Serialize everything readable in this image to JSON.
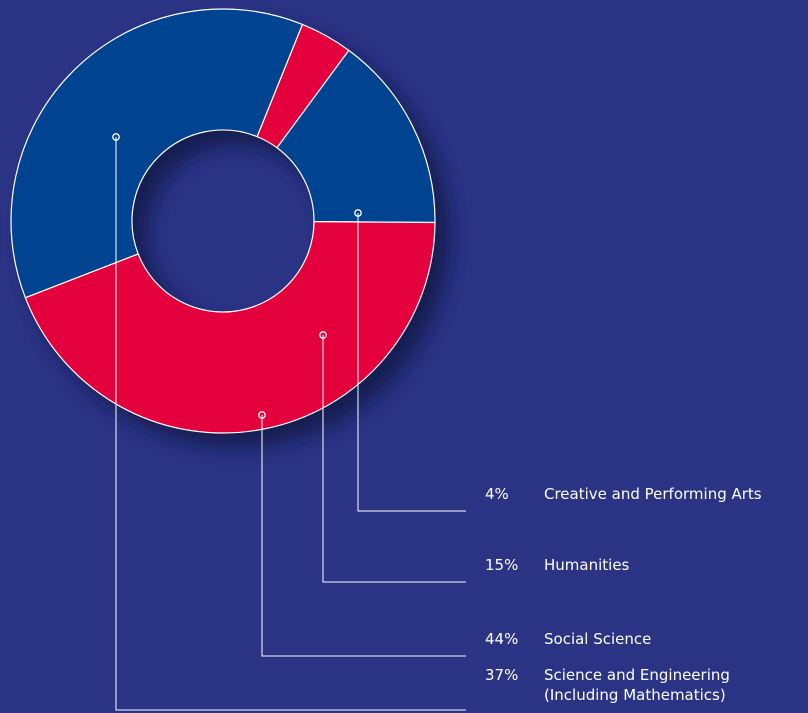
{
  "chart_data": {
    "type": "pie",
    "variant": "donut",
    "title": "",
    "slices": [
      {
        "value": 4,
        "percent_label": "4%",
        "label_lines": [
          "Creative and Performing Arts"
        ],
        "color": "#e3003c"
      },
      {
        "value": 15,
        "percent_label": "15%",
        "label_lines": [
          "Humanities"
        ],
        "color": "#004390"
      },
      {
        "value": 44,
        "percent_label": "44%",
        "label_lines": [
          "Social Science"
        ],
        "color": "#e3003c"
      },
      {
        "value": 37,
        "percent_label": "37%",
        "label_lines": [
          "Science and Engineering",
          "(Including Mathematics)"
        ],
        "color": "#004390"
      }
    ],
    "legend_position": "bottom-right",
    "colors": {
      "background": "#2a3384",
      "blue": "#004390",
      "red": "#e3003c",
      "lines": "#ffffff"
    }
  }
}
